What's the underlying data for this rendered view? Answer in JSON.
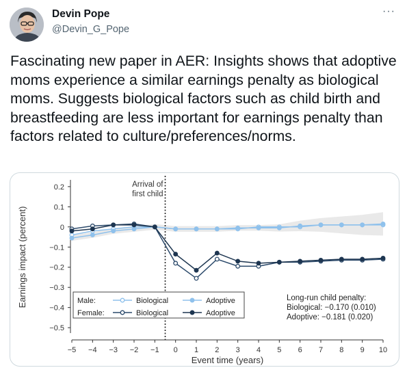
{
  "author": {
    "name": "Devin Pope",
    "handle": "@Devin_G_Pope",
    "avatar_icon": "user-photo-avatar"
  },
  "more_icon": "ellipsis-icon",
  "more_label": "···",
  "tweet": {
    "text": "Fascinating new paper in AER: Insights shows that adoptive moms experience a similar earnings penalty as biological moms. Suggests biological factors such as child birth and breastfeeding are less important for earnings penalty than factors related to culture/preferences/norms."
  },
  "chart_data": {
    "type": "line",
    "xlabel": "Event time (years)",
    "ylabel": "Earnings impact (percent)",
    "x": [
      -5,
      -4,
      -3,
      -2,
      -1,
      0,
      1,
      2,
      3,
      4,
      5,
      6,
      7,
      8,
      9,
      10
    ],
    "xticks": [
      "−5",
      "−4",
      "−3",
      "−2",
      "−1",
      "0",
      "1",
      "2",
      "3",
      "4",
      "5",
      "6",
      "7",
      "8",
      "9",
      "10"
    ],
    "ylim": [
      -0.52,
      0.22
    ],
    "yticks": [
      0.2,
      0.1,
      0,
      -0.1,
      -0.2,
      -0.3,
      -0.4,
      -0.5
    ],
    "ytick_labels": [
      "0.2",
      "0.1",
      "0",
      "−0.1",
      "−0.2",
      "−0.3",
      "−0.4",
      "−0.5"
    ],
    "series": [
      {
        "group": "Male",
        "name": "Biological",
        "color": "#8fc1ec",
        "marker": "open",
        "values": [
          -0.04,
          -0.02,
          -0.01,
          0.0,
          0.0,
          -0.01,
          -0.01,
          -0.01,
          -0.01,
          0.0,
          0.0,
          0.0,
          0.01,
          0.01,
          0.01,
          0.01
        ]
      },
      {
        "group": "Male",
        "name": "Adoptive",
        "color": "#8fc1ec",
        "marker": "filled",
        "values": [
          -0.055,
          -0.04,
          -0.02,
          -0.01,
          0.0,
          -0.01,
          -0.01,
          -0.01,
          -0.005,
          -0.005,
          -0.005,
          0.005,
          0.01,
          0.01,
          0.01,
          0.015
        ]
      },
      {
        "group": "Female",
        "name": "Biological",
        "color": "#2c4a6b",
        "marker": "open",
        "values": [
          -0.01,
          0.005,
          0.01,
          0.015,
          0.0,
          -0.18,
          -0.255,
          -0.16,
          -0.195,
          -0.195,
          -0.175,
          -0.175,
          -0.17,
          -0.165,
          -0.165,
          -0.16
        ]
      },
      {
        "group": "Female",
        "name": "Adoptive",
        "color": "#1d3550",
        "marker": "filled",
        "values": [
          -0.02,
          -0.01,
          0.01,
          0.01,
          0.0,
          -0.135,
          -0.215,
          -0.13,
          -0.17,
          -0.18,
          -0.175,
          -0.17,
          -0.165,
          -0.16,
          -0.16,
          -0.155
        ]
      }
    ],
    "annotations": {
      "event_line_label": "Arrival of\nfirst child",
      "penalty_title": "Long-run child penalty:",
      "penalty_bio": "Biological: −0.170 (0.010)",
      "penalty_adopt": "Adoptive: −0.181 (0.020)"
    },
    "legend": {
      "male_label": "Male:",
      "female_label": "Female:",
      "bio_label": "Biological",
      "adopt_label": "Adoptive",
      "placement": "bottom-left"
    },
    "grid": false
  }
}
